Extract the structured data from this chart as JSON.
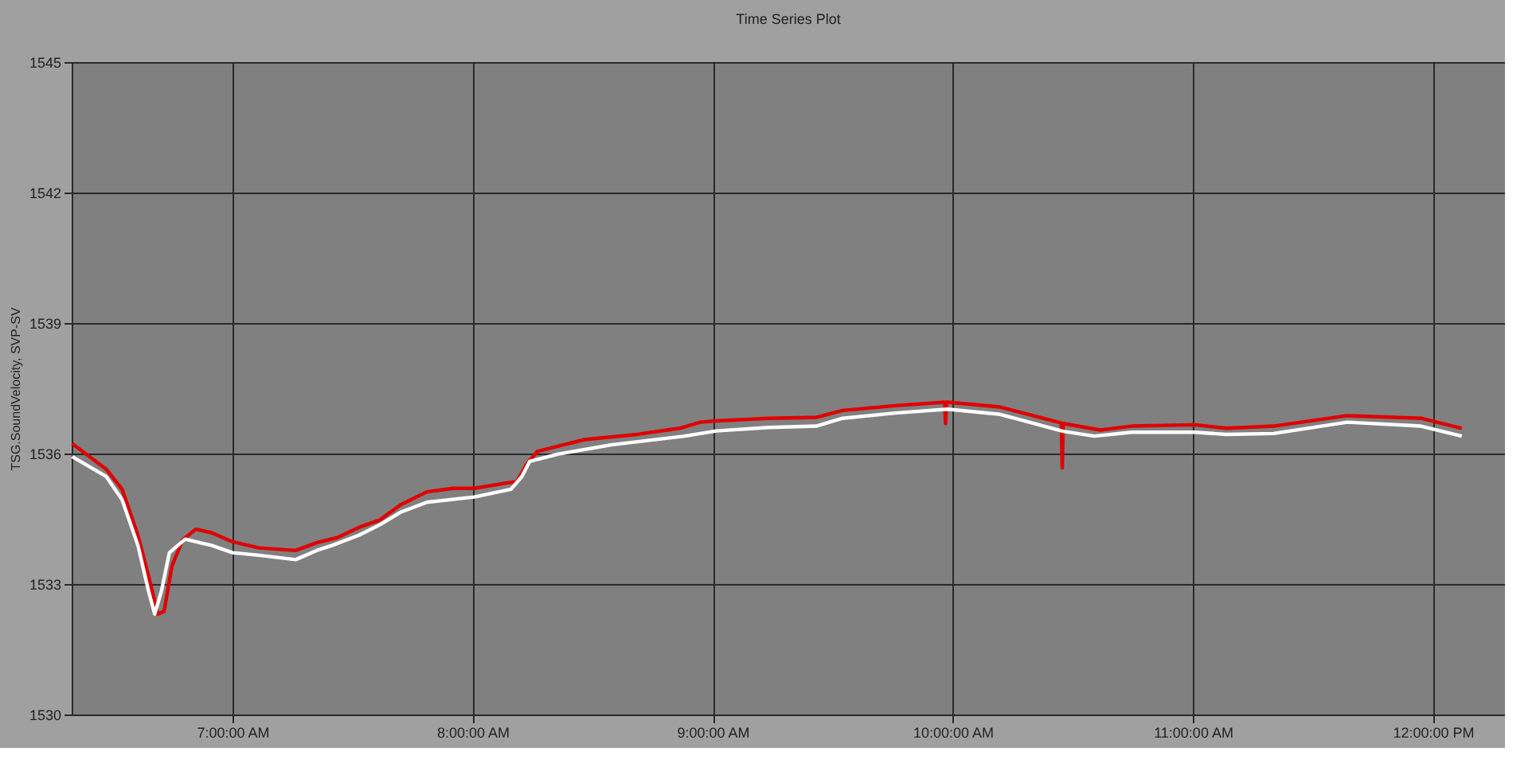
{
  "chart_data": {
    "type": "line",
    "title": "Time Series Plot",
    "ylabel": "TSG.SoundVelocity, SVP-SV",
    "xlim": [
      6.33,
      12.3
    ],
    "ylim": [
      1530,
      1545
    ],
    "xticks": [
      {
        "value": 7,
        "label": "7:00:00 AM"
      },
      {
        "value": 8,
        "label": "8:00:00 AM"
      },
      {
        "value": 9,
        "label": "9:00:00 AM"
      },
      {
        "value": 10,
        "label": "10:00:00 AM"
      },
      {
        "value": 11,
        "label": "11:00:00 AM"
      },
      {
        "value": 12,
        "label": "12:00:00 PM"
      }
    ],
    "yticks": [
      1530,
      1533,
      1536,
      1539,
      1542,
      1545
    ],
    "grid": true,
    "marker": "none",
    "line_style": "solid",
    "series": [
      {
        "color": "#e00000",
        "x": [
          6.332,
          6.474,
          6.54,
          6.606,
          6.65,
          6.689,
          6.715,
          6.748,
          6.792,
          6.847,
          6.912,
          7.0,
          7.11,
          7.263,
          7.35,
          7.438,
          7.526,
          7.613,
          7.7,
          7.81,
          7.92,
          8.007,
          8.139,
          8.183,
          8.226,
          8.27,
          8.358,
          8.467,
          8.686,
          8.862,
          8.949,
          9.015,
          9.234,
          9.431,
          9.541,
          9.76,
          9.966,
          9.97,
          9.974,
          9.978,
          10.197,
          10.452,
          10.456,
          10.46,
          10.614,
          10.745,
          11.008,
          11.139,
          11.336,
          11.643,
          11.95,
          12.12
        ],
        "values": [
          1536.23,
          1535.64,
          1535.18,
          1534.12,
          1533.19,
          1532.31,
          1532.37,
          1533.42,
          1534.01,
          1534.26,
          1534.18,
          1533.97,
          1533.83,
          1533.77,
          1533.95,
          1534.07,
          1534.3,
          1534.47,
          1534.82,
          1535.12,
          1535.2,
          1535.2,
          1535.32,
          1535.35,
          1535.76,
          1536.05,
          1536.17,
          1536.32,
          1536.44,
          1536.58,
          1536.72,
          1536.75,
          1536.81,
          1536.83,
          1536.99,
          1537.1,
          1537.18,
          1536.69,
          1537.18,
          1537.18,
          1537.07,
          1536.7,
          1535.67,
          1536.69,
          1536.54,
          1536.63,
          1536.66,
          1536.58,
          1536.63,
          1536.87,
          1536.81,
          1536.58
        ]
      },
      {
        "color": "#ffffff",
        "x": [
          6.332,
          6.474,
          6.54,
          6.606,
          6.65,
          6.676,
          6.704,
          6.737,
          6.803,
          6.912,
          7.0,
          7.11,
          7.263,
          7.35,
          7.416,
          7.526,
          7.613,
          7.7,
          7.81,
          8.007,
          8.16,
          8.205,
          8.238,
          8.358,
          8.577,
          8.883,
          9.015,
          9.234,
          9.431,
          9.541,
          9.76,
          9.978,
          10.197,
          10.46,
          10.59,
          10.745,
          11.008,
          11.139,
          11.336,
          11.643,
          11.95,
          12.12
        ],
        "values": [
          1535.93,
          1535.47,
          1534.94,
          1533.89,
          1532.84,
          1532.31,
          1532.84,
          1533.72,
          1534.03,
          1533.89,
          1533.72,
          1533.66,
          1533.56,
          1533.77,
          1533.89,
          1534.12,
          1534.36,
          1534.65,
          1534.88,
          1535.0,
          1535.18,
          1535.47,
          1535.82,
          1535.99,
          1536.2,
          1536.4,
          1536.52,
          1536.6,
          1536.63,
          1536.81,
          1536.93,
          1537.02,
          1536.9,
          1536.51,
          1536.4,
          1536.49,
          1536.49,
          1536.44,
          1536.46,
          1536.72,
          1536.63,
          1536.4
        ]
      }
    ]
  }
}
